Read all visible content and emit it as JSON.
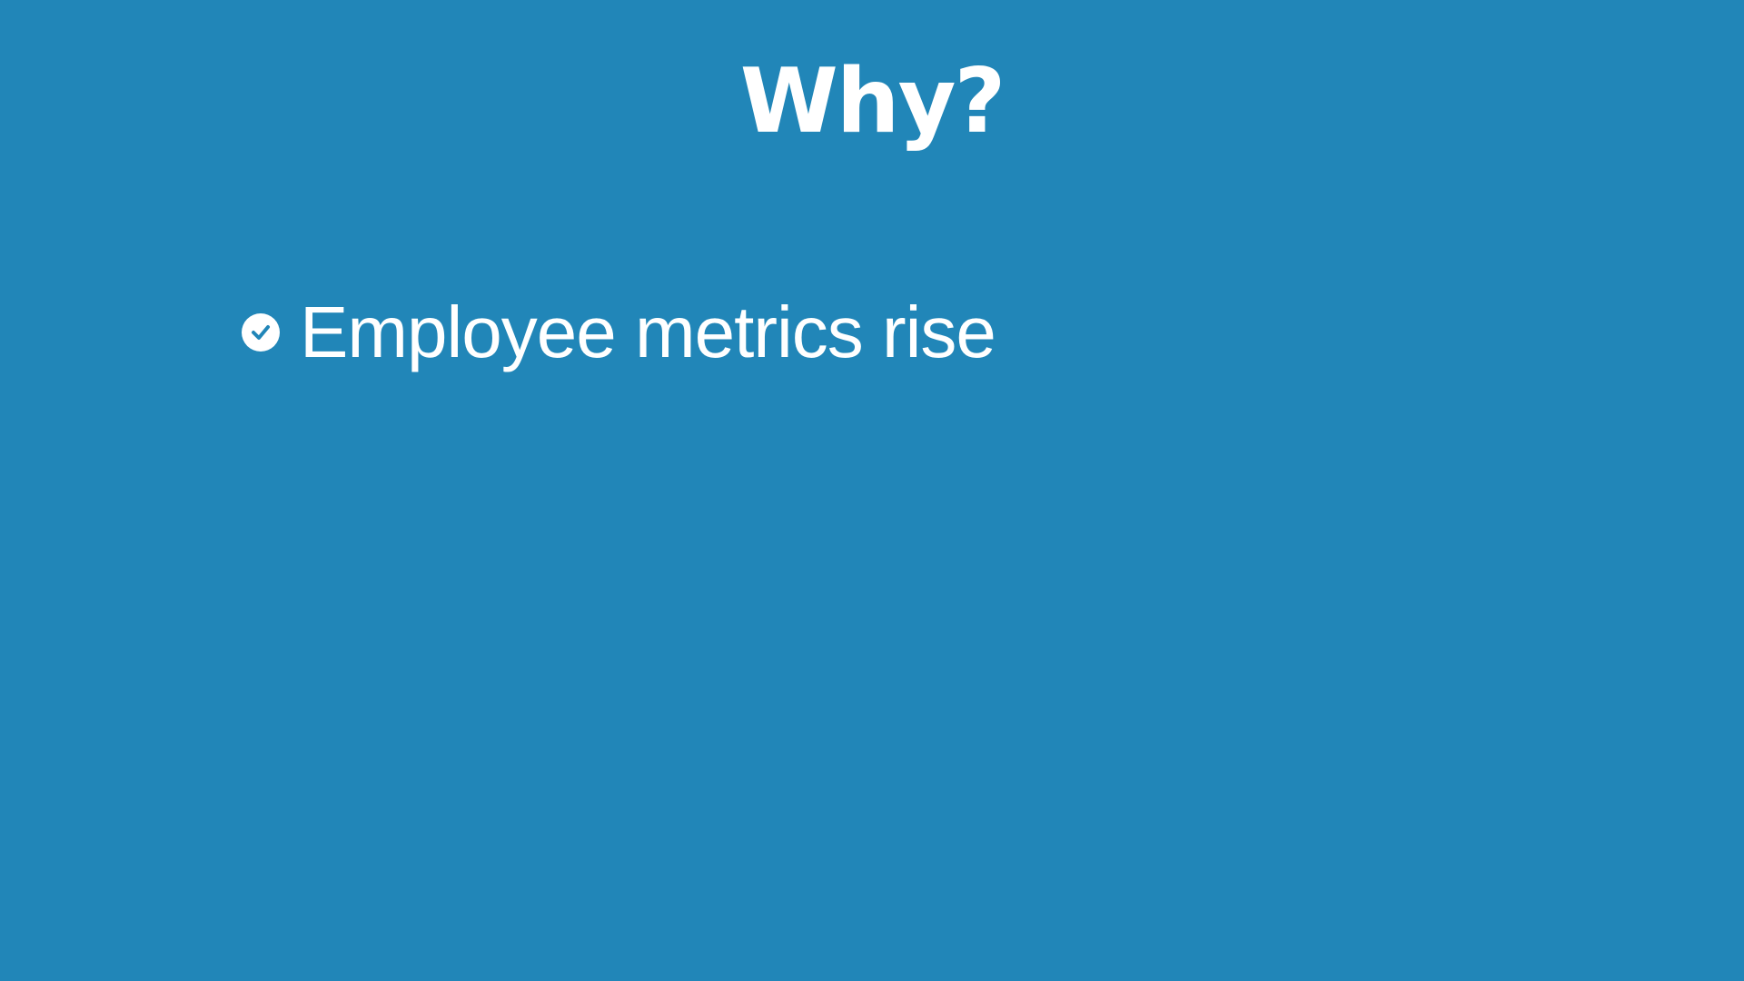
{
  "slide": {
    "title": "Why?",
    "background_color": "#2186b8",
    "text_color": "#ffffff",
    "bullets": [
      {
        "icon": "check-circle-icon",
        "text": "Employee metrics rise"
      }
    ]
  }
}
